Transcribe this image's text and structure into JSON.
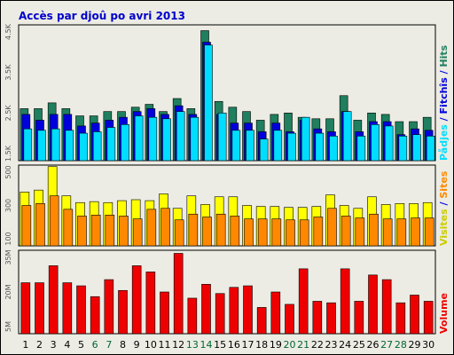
{
  "title": "Accès par djoû po avri 2013",
  "colors": {
    "hits": "#1f7f5f",
    "files": "#0000dd",
    "pages": "#00ddff",
    "visits": "#ffff00",
    "sites": "#ff8800",
    "volume": "#ee0000",
    "weekend_day": "#006633",
    "weekday_day": "#000000"
  },
  "chart_data": [
    {
      "type": "bar",
      "categories": [
        "1",
        "2",
        "3",
        "4",
        "5",
        "6",
        "7",
        "8",
        "9",
        "10",
        "11",
        "12",
        "13",
        "14",
        "15",
        "16",
        "17",
        "18",
        "19",
        "20",
        "21",
        "22",
        "23",
        "24",
        "25",
        "26",
        "27",
        "28",
        "29",
        "30"
      ],
      "weekend_days": [
        "6",
        "7",
        "13",
        "14",
        "20",
        "21",
        "27",
        "28"
      ],
      "legend": [
        "Pådjes",
        "Fitchîs",
        "Hits"
      ],
      "series": [
        {
          "name": "Hits",
          "values": [
            1800,
            1800,
            2000,
            1800,
            1550,
            1550,
            1700,
            1700,
            1850,
            1950,
            1700,
            2150,
            1800,
            4500,
            2050,
            1850,
            1700,
            1400,
            1600,
            1650,
            1500,
            1450,
            1450,
            2250,
            1400,
            1650,
            1600,
            1350,
            1350,
            1500
          ]
        },
        {
          "name": "Fitchîs",
          "values": [
            1600,
            1400,
            1600,
            1600,
            1200,
            1300,
            1400,
            1500,
            1700,
            1800,
            1600,
            1900,
            1600,
            4100,
            1600,
            1300,
            1300,
            1000,
            1300,
            1000,
            1400,
            1100,
            1000,
            1700,
            1000,
            1350,
            1350,
            900,
            1100,
            1050
          ]
        },
        {
          "name": "Pådjes",
          "values": [
            1100,
            1050,
            1100,
            1050,
            950,
            1000,
            1150,
            1250,
            1550,
            1500,
            1450,
            1700,
            1500,
            4000,
            1650,
            1050,
            1050,
            750,
            1050,
            950,
            1500,
            950,
            850,
            1700,
            850,
            1250,
            1200,
            850,
            900,
            850
          ]
        }
      ],
      "y_ticks": [
        "1.5K",
        "2.5K",
        "3.5K",
        "4.5K"
      ],
      "ylim": [
        0,
        4700
      ]
    },
    {
      "type": "bar",
      "categories": [
        "1",
        "2",
        "3",
        "4",
        "5",
        "6",
        "7",
        "8",
        "9",
        "10",
        "11",
        "12",
        "13",
        "14",
        "15",
        "16",
        "17",
        "18",
        "19",
        "20",
        "21",
        "22",
        "23",
        "24",
        "25",
        "26",
        "27",
        "28",
        "29",
        "30"
      ],
      "legend": [
        "Visites",
        "Sites"
      ],
      "series": [
        {
          "name": "Visites",
          "values": [
            560,
            580,
            825,
            520,
            450,
            460,
            450,
            470,
            480,
            470,
            540,
            390,
            520,
            430,
            510,
            510,
            420,
            410,
            410,
            400,
            400,
            410,
            530,
            420,
            390,
            510,
            430,
            440,
            440,
            450
          ]
        },
        {
          "name": "Sites",
          "values": [
            420,
            440,
            520,
            380,
            310,
            320,
            320,
            310,
            280,
            380,
            390,
            270,
            330,
            300,
            330,
            310,
            280,
            280,
            280,
            270,
            270,
            300,
            390,
            310,
            290,
            330,
            280,
            280,
            290,
            290
          ]
        }
      ],
      "y_ticks": [
        "100",
        "300",
        "500"
      ],
      "ylim": [
        0,
        840
      ]
    },
    {
      "type": "bar",
      "categories": [
        "1",
        "2",
        "3",
        "4",
        "5",
        "6",
        "7",
        "8",
        "9",
        "10",
        "11",
        "12",
        "13",
        "14",
        "15",
        "16",
        "17",
        "18",
        "19",
        "20",
        "21",
        "22",
        "23",
        "24",
        "25",
        "26",
        "27",
        "28",
        "29",
        "30"
      ],
      "legend": [
        "Volume"
      ],
      "series": [
        {
          "name": "Volume",
          "values": [
            33,
            33,
            44,
            33,
            31,
            24,
            35,
            28,
            44,
            40,
            27,
            52,
            23,
            32,
            26,
            30,
            31,
            17,
            27,
            19,
            42,
            21,
            20,
            42,
            21,
            38,
            35,
            20,
            25,
            21
          ]
        }
      ],
      "y_ticks": [
        "5M",
        "20M",
        "35M"
      ],
      "ylim": [
        0,
        54
      ]
    }
  ]
}
